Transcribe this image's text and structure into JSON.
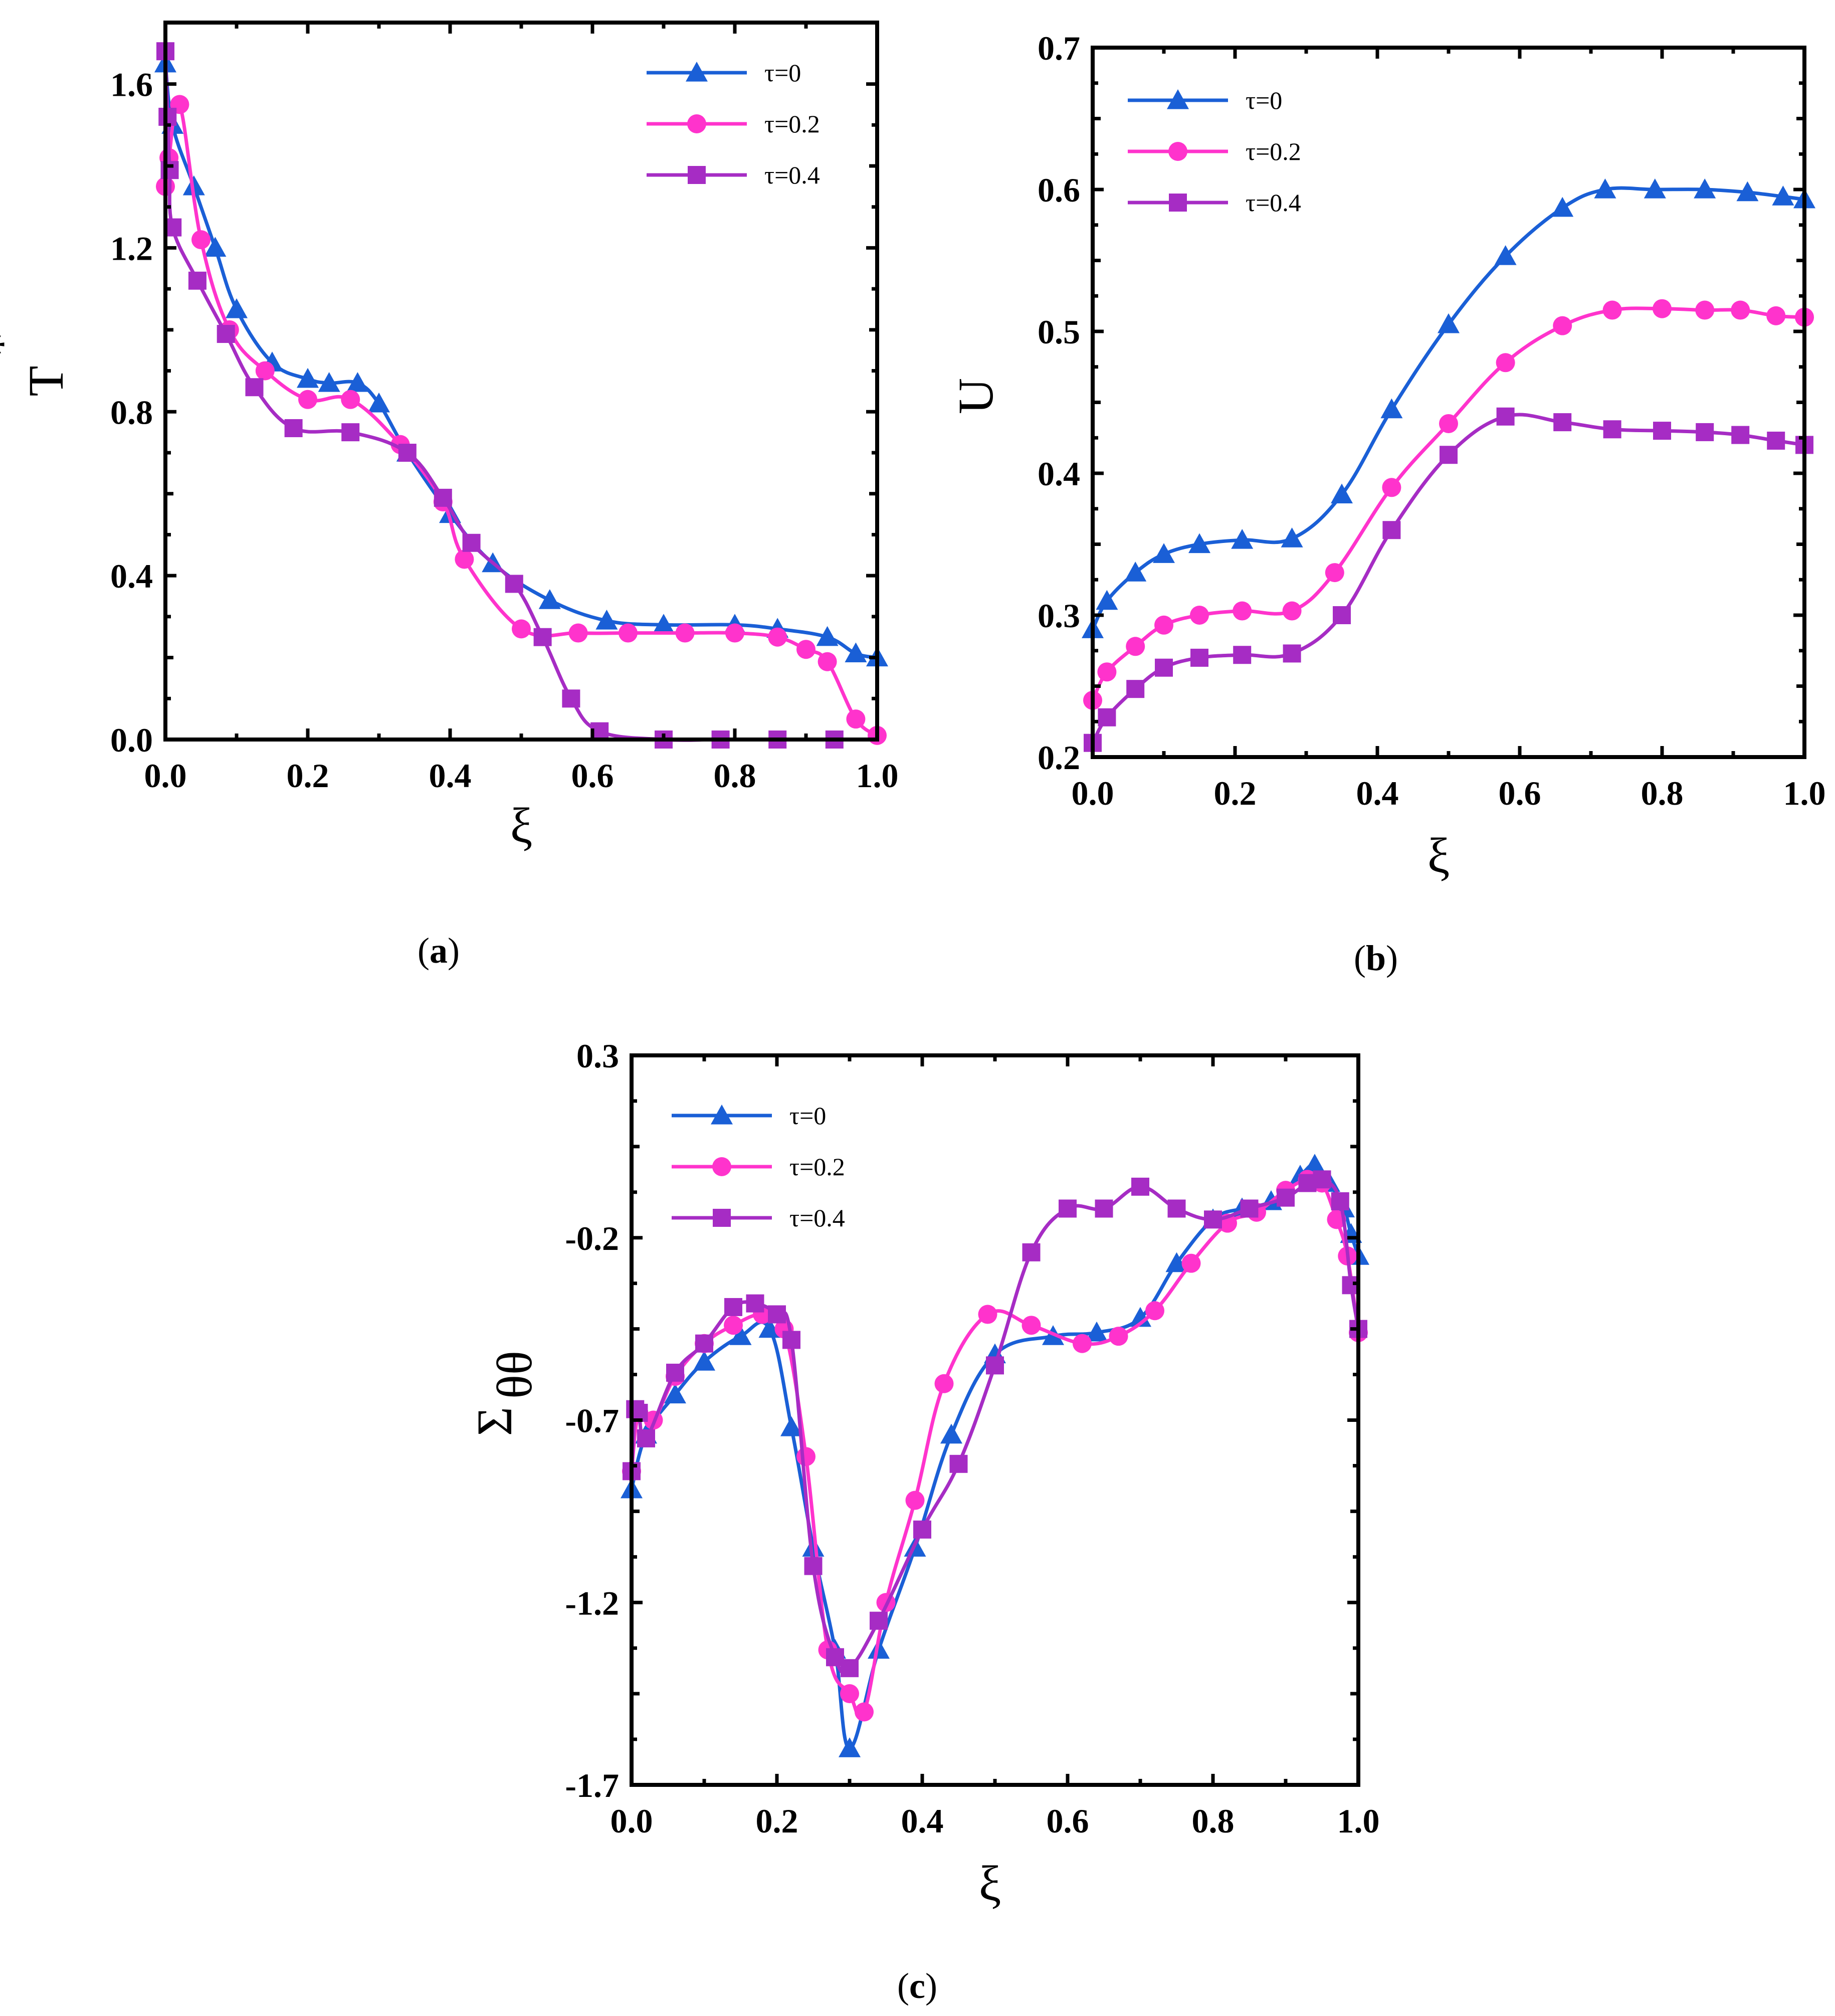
{
  "colors": {
    "tau0": "#1a5fd6",
    "tau02": "#ff33cc",
    "tau04": "#a62cc4"
  },
  "panel_captions": [
    {
      "open": "(",
      "letter": "a",
      "close": ")"
    },
    {
      "open": "(",
      "letter": "b",
      "close": ")"
    },
    {
      "open": "(",
      "letter": "c",
      "close": ")"
    }
  ],
  "chart_data": [
    {
      "id": "a",
      "type": "line",
      "xlabel": "ξ",
      "ylabel": "T",
      "ylabel_sup": "*",
      "xlim": [
        0,
        1.0
      ],
      "ylim": [
        0,
        1.75
      ],
      "xticks": [
        "0.0",
        "0.2",
        "0.4",
        "0.6",
        "0.8",
        "1.0"
      ],
      "yticks": [
        "0.0",
        "0.4",
        "0.8",
        "1.2",
        "1.6"
      ],
      "legend_position": "top-right",
      "series": [
        {
          "name": "τ=0",
          "marker": "triangle",
          "x": [
            0,
            0.01,
            0.04,
            0.07,
            0.1,
            0.15,
            0.2,
            0.23,
            0.27,
            0.3,
            0.34,
            0.4,
            0.46,
            0.54,
            0.62,
            0.7,
            0.8,
            0.86,
            0.93,
            0.97,
            1.0
          ],
          "y": [
            1.65,
            1.5,
            1.35,
            1.2,
            1.05,
            0.92,
            0.88,
            0.87,
            0.87,
            0.82,
            0.7,
            0.55,
            0.43,
            0.34,
            0.29,
            0.28,
            0.28,
            0.27,
            0.25,
            0.21,
            0.2
          ]
        },
        {
          "name": "τ=0.2",
          "marker": "circle",
          "x": [
            0,
            0.005,
            0.02,
            0.05,
            0.09,
            0.14,
            0.2,
            0.26,
            0.33,
            0.39,
            0.42,
            0.5,
            0.58,
            0.65,
            0.73,
            0.8,
            0.86,
            0.9,
            0.93,
            0.97,
            1.0
          ],
          "y": [
            1.35,
            1.42,
            1.55,
            1.22,
            1.0,
            0.9,
            0.83,
            0.83,
            0.72,
            0.58,
            0.44,
            0.27,
            0.26,
            0.26,
            0.26,
            0.26,
            0.25,
            0.22,
            0.19,
            0.05,
            0.01
          ]
        },
        {
          "name": "τ=0.4",
          "marker": "square",
          "x": [
            0,
            0.003,
            0.006,
            0.01,
            0.045,
            0.085,
            0.125,
            0.18,
            0.26,
            0.34,
            0.39,
            0.43,
            0.49,
            0.53,
            0.57,
            0.61,
            0.7,
            0.78,
            0.86,
            0.94
          ],
          "y": [
            1.68,
            1.52,
            1.39,
            1.25,
            1.12,
            0.99,
            0.86,
            0.76,
            0.75,
            0.7,
            0.59,
            0.48,
            0.38,
            0.25,
            0.1,
            0.02,
            0.0,
            0.0,
            0.0,
            0.0
          ]
        }
      ]
    },
    {
      "id": "b",
      "type": "line",
      "xlabel": "ξ",
      "ylabel": "U",
      "ylabel_sup": "",
      "xlim": [
        0,
        1.0
      ],
      "ylim": [
        0.2,
        0.7
      ],
      "xticks": [
        "0.0",
        "0.2",
        "0.4",
        "0.6",
        "0.8",
        "1.0"
      ],
      "yticks": [
        "0.2",
        "0.3",
        "0.4",
        "0.5",
        "0.6",
        "0.7"
      ],
      "legend_position": "top-left",
      "series": [
        {
          "name": "τ=0",
          "marker": "triangle",
          "x": [
            0,
            0.02,
            0.06,
            0.1,
            0.15,
            0.21,
            0.28,
            0.35,
            0.42,
            0.5,
            0.58,
            0.66,
            0.72,
            0.79,
            0.86,
            0.92,
            0.97,
            1.0
          ],
          "y": [
            0.29,
            0.31,
            0.33,
            0.343,
            0.35,
            0.353,
            0.354,
            0.385,
            0.445,
            0.505,
            0.553,
            0.587,
            0.6,
            0.6,
            0.6,
            0.598,
            0.595,
            0.593
          ]
        },
        {
          "name": "τ=0.2",
          "marker": "circle",
          "x": [
            0,
            0.02,
            0.06,
            0.1,
            0.15,
            0.21,
            0.28,
            0.34,
            0.42,
            0.5,
            0.58,
            0.66,
            0.73,
            0.8,
            0.86,
            0.91,
            0.96,
            1.0
          ],
          "y": [
            0.24,
            0.26,
            0.278,
            0.293,
            0.3,
            0.303,
            0.303,
            0.33,
            0.39,
            0.435,
            0.478,
            0.504,
            0.515,
            0.516,
            0.515,
            0.515,
            0.511,
            0.51
          ]
        },
        {
          "name": "τ=0.4",
          "marker": "square",
          "x": [
            0,
            0.02,
            0.06,
            0.1,
            0.15,
            0.21,
            0.28,
            0.35,
            0.42,
            0.5,
            0.58,
            0.66,
            0.73,
            0.8,
            0.86,
            0.91,
            0.96,
            1.0
          ],
          "y": [
            0.21,
            0.228,
            0.248,
            0.263,
            0.27,
            0.272,
            0.273,
            0.3,
            0.36,
            0.413,
            0.44,
            0.436,
            0.431,
            0.43,
            0.429,
            0.427,
            0.423,
            0.42
          ]
        }
      ]
    },
    {
      "id": "c",
      "type": "line",
      "xlabel": "ξ",
      "ylabel": "Σ",
      "ylabel_sub": "θθ",
      "xlim": [
        0,
        1.0
      ],
      "ylim": [
        -1.7,
        0.3
      ],
      "xticks": [
        "0.0",
        "0.2",
        "0.4",
        "0.6",
        "0.8",
        "1.0"
      ],
      "yticks": [
        "-1.7",
        "-1.2",
        "-0.7",
        "-0.2",
        "0.3"
      ],
      "legend_position": "top-left",
      "series": [
        {
          "name": "τ=0",
          "marker": "triangle",
          "x": [
            0,
            0.02,
            0.06,
            0.1,
            0.15,
            0.19,
            0.22,
            0.25,
            0.28,
            0.3,
            0.34,
            0.39,
            0.44,
            0.5,
            0.58,
            0.64,
            0.7,
            0.75,
            0.8,
            0.84,
            0.88,
            0.92,
            0.94,
            0.96,
            0.98,
            0.99,
            1.0
          ],
          "y": [
            -0.89,
            -0.74,
            -0.63,
            -0.54,
            -0.47,
            -0.45,
            -0.72,
            -1.05,
            -1.33,
            -1.6,
            -1.33,
            -1.05,
            -0.74,
            -0.52,
            -0.47,
            -0.46,
            -0.42,
            -0.27,
            -0.15,
            -0.12,
            -0.1,
            -0.03,
            0.0,
            -0.05,
            -0.12,
            -0.19,
            -0.25
          ]
        },
        {
          "name": "τ=0.2",
          "marker": "circle",
          "x": [
            0,
            0.01,
            0.03,
            0.06,
            0.1,
            0.14,
            0.18,
            0.21,
            0.24,
            0.27,
            0.3,
            0.32,
            0.35,
            0.39,
            0.43,
            0.49,
            0.55,
            0.62,
            0.67,
            0.72,
            0.77,
            0.82,
            0.86,
            0.9,
            0.93,
            0.95,
            0.97,
            0.985,
            1.0
          ],
          "y": [
            -0.84,
            -0.68,
            -0.7,
            -0.58,
            -0.49,
            -0.44,
            -0.41,
            -0.45,
            -0.8,
            -1.33,
            -1.45,
            -1.5,
            -1.2,
            -0.92,
            -0.6,
            -0.41,
            -0.44,
            -0.49,
            -0.47,
            -0.4,
            -0.27,
            -0.16,
            -0.13,
            -0.07,
            -0.04,
            -0.05,
            -0.15,
            -0.25,
            -0.46
          ]
        },
        {
          "name": "τ=0.4",
          "marker": "square",
          "x": [
            0,
            0.005,
            0.01,
            0.02,
            0.06,
            0.1,
            0.14,
            0.17,
            0.2,
            0.22,
            0.25,
            0.28,
            0.3,
            0.34,
            0.4,
            0.45,
            0.5,
            0.55,
            0.6,
            0.65,
            0.7,
            0.75,
            0.8,
            0.85,
            0.9,
            0.93,
            0.95,
            0.975,
            0.99,
            1.0
          ],
          "y": [
            -0.84,
            -0.67,
            -0.68,
            -0.75,
            -0.57,
            -0.49,
            -0.39,
            -0.38,
            -0.41,
            -0.48,
            -1.1,
            -1.35,
            -1.38,
            -1.25,
            -1.0,
            -0.82,
            -0.55,
            -0.24,
            -0.12,
            -0.12,
            -0.06,
            -0.12,
            -0.15,
            -0.12,
            -0.09,
            -0.05,
            -0.04,
            -0.1,
            -0.33,
            -0.45
          ]
        }
      ]
    }
  ]
}
